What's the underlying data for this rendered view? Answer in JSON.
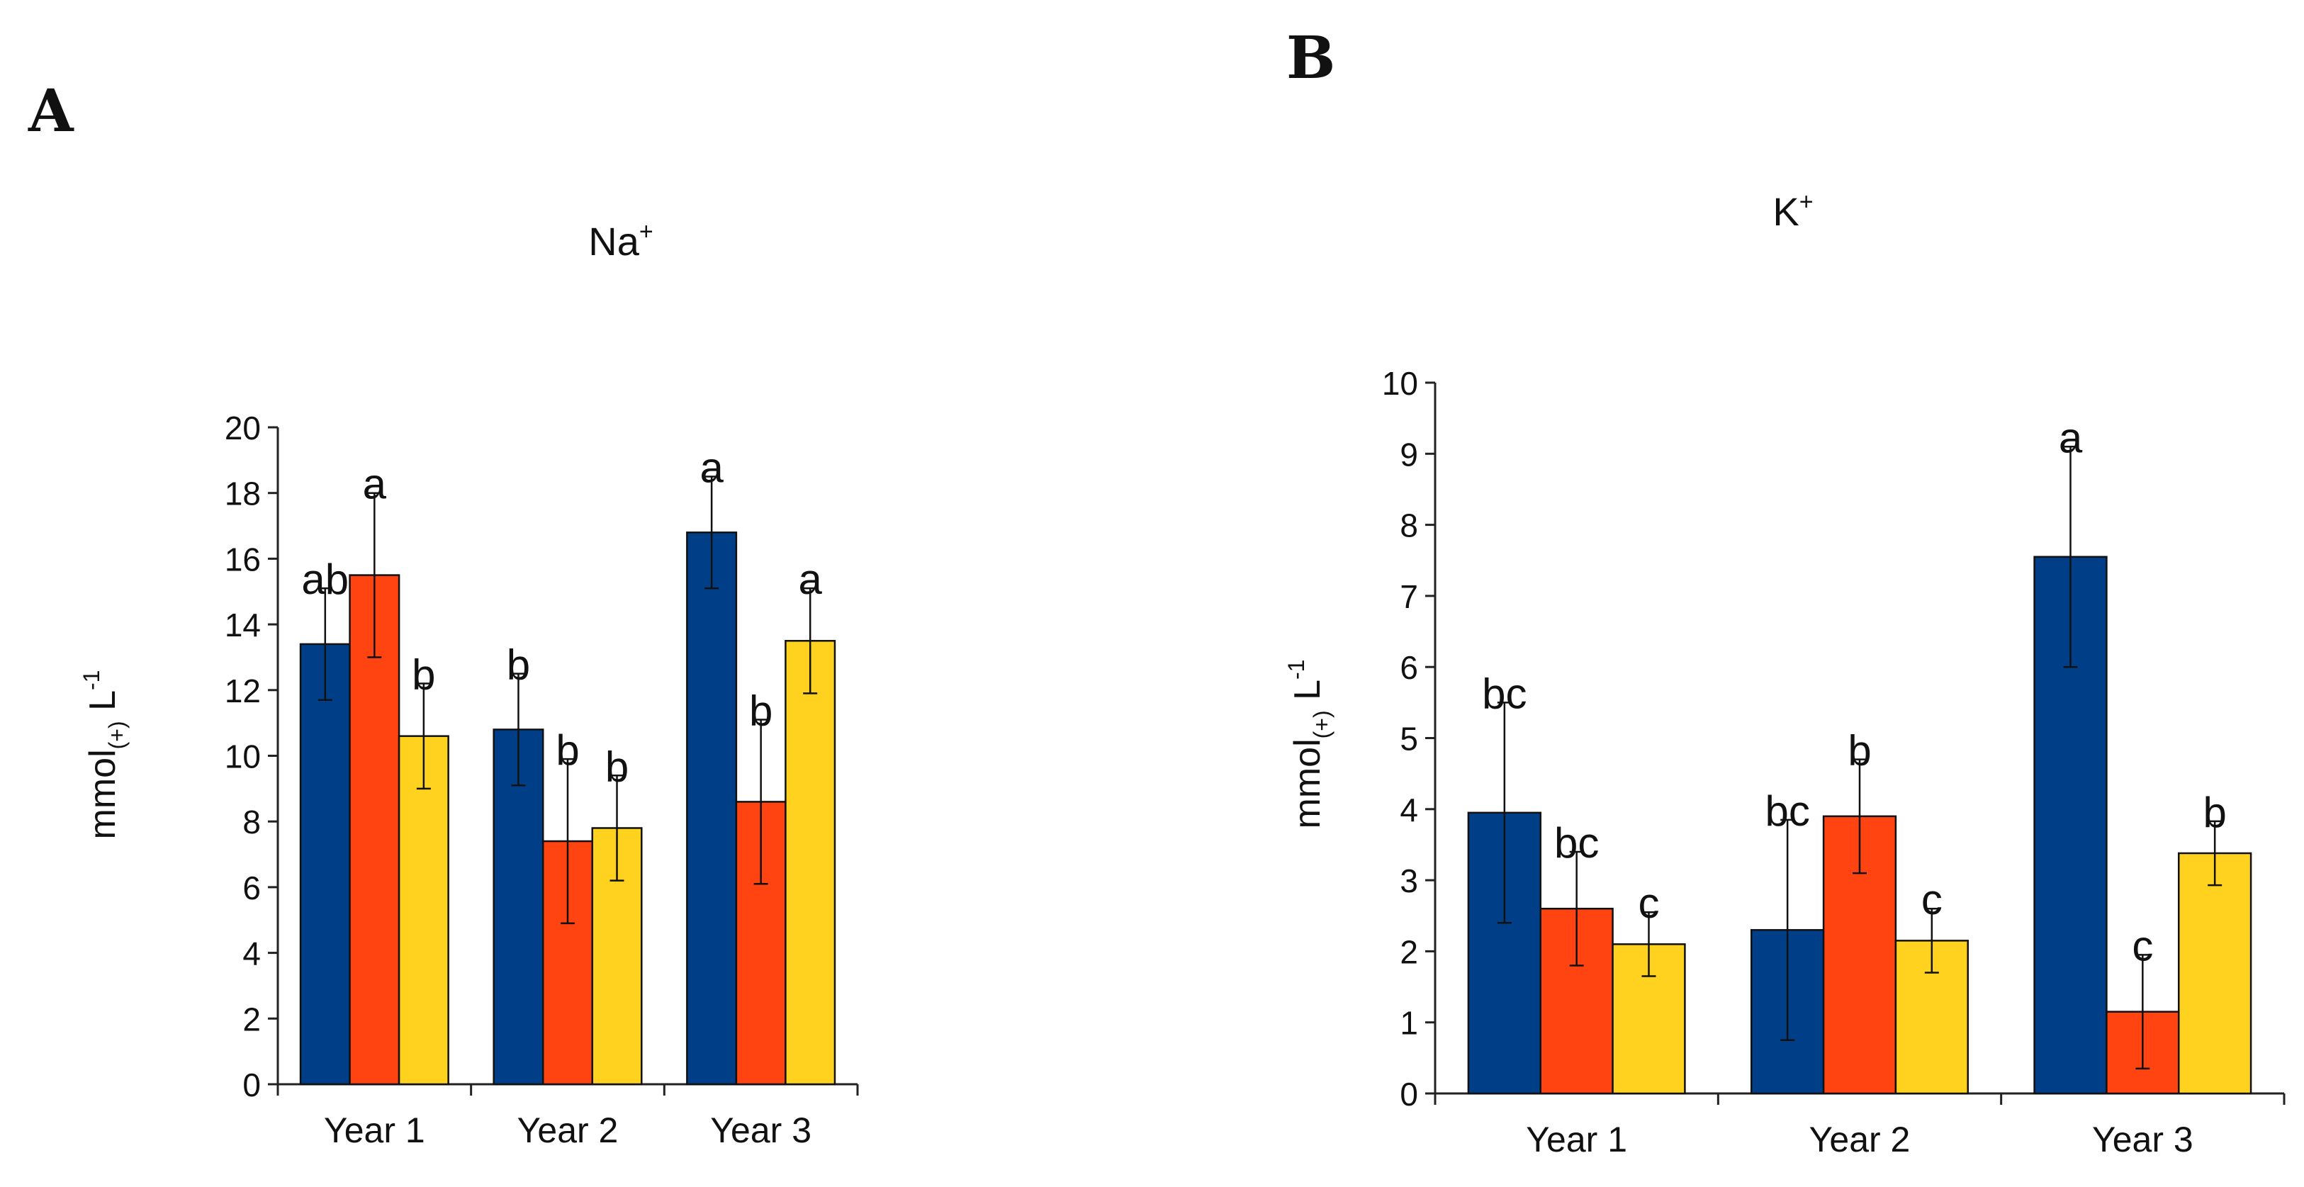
{
  "colors": [
    "#003F87",
    "#FF4411",
    "#FFD21F"
  ],
  "chart_data": [
    {
      "type": "bar",
      "panel_label": "A",
      "title": "Na",
      "title_sup": "+",
      "ylabel": "mmol",
      "ylabel_sub": "(+)",
      "ylabel_tail": " L",
      "ylabel_sup": "-1",
      "ylim": [
        0,
        20
      ],
      "yticks": [
        0,
        2,
        4,
        6,
        8,
        10,
        12,
        14,
        16,
        18,
        20
      ],
      "grid": false,
      "legend": "none",
      "categories": [
        "Year 1",
        "Year 2",
        "Year 3"
      ],
      "series": [
        {
          "values": [
            13.4,
            10.8,
            16.8
          ],
          "errors": [
            1.7,
            1.7,
            1.7
          ],
          "letters": [
            "ab",
            "b",
            "a"
          ]
        },
        {
          "values": [
            15.5,
            7.4,
            8.6
          ],
          "errors": [
            2.5,
            2.5,
            2.5
          ],
          "letters": [
            "a",
            "b",
            "b"
          ]
        },
        {
          "values": [
            10.6,
            7.8,
            13.5
          ],
          "errors": [
            1.6,
            1.6,
            1.6
          ],
          "letters": [
            "b",
            "b",
            "a"
          ]
        }
      ]
    },
    {
      "type": "bar",
      "panel_label": "B",
      "title": "K",
      "title_sup": "+",
      "ylabel": "mmol",
      "ylabel_sub": "(+)",
      "ylabel_tail": " L",
      "ylabel_sup": "-1",
      "ylim": [
        0,
        10
      ],
      "yticks": [
        0,
        1,
        2,
        3,
        4,
        5,
        6,
        7,
        8,
        9,
        10
      ],
      "grid": false,
      "legend": "none",
      "categories": [
        "Year 1",
        "Year 2",
        "Year 3"
      ],
      "series": [
        {
          "values": [
            3.95,
            2.3,
            7.55
          ],
          "errors": [
            1.55,
            1.55,
            1.55
          ],
          "letters": [
            "bc",
            "bc",
            "a"
          ]
        },
        {
          "values": [
            2.6,
            3.9,
            1.15
          ],
          "errors": [
            0.8,
            0.8,
            0.8
          ],
          "letters": [
            "bc",
            "b",
            "c"
          ]
        },
        {
          "values": [
            2.1,
            2.15,
            3.38
          ],
          "errors": [
            0.45,
            0.45,
            0.45
          ],
          "letters": [
            "c",
            "c",
            "b"
          ]
        }
      ]
    }
  ]
}
